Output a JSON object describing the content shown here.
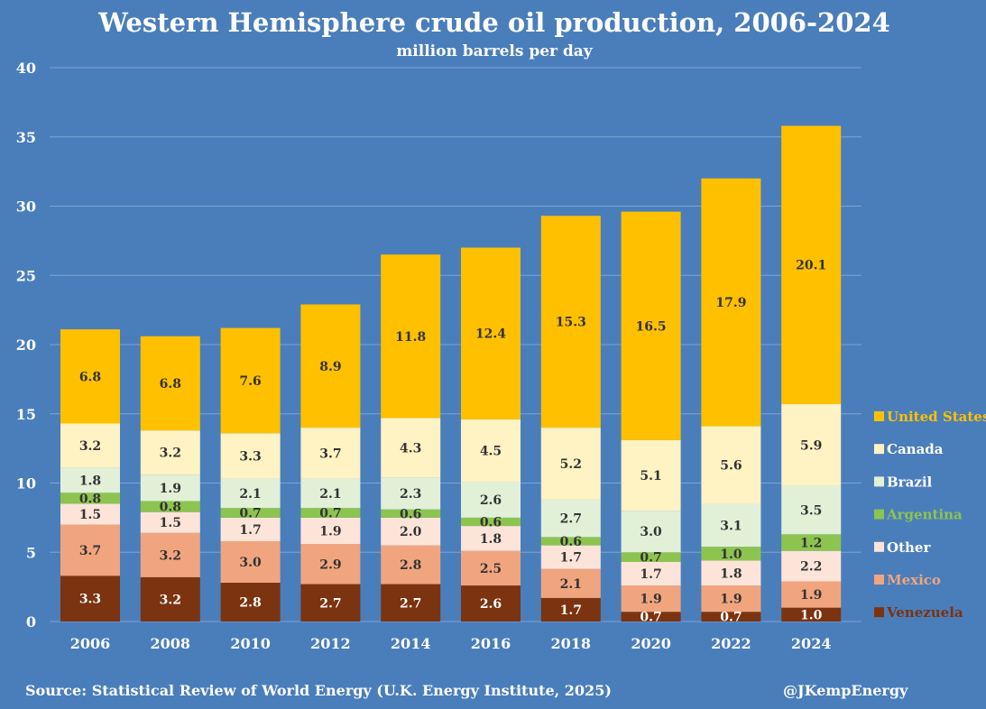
{
  "chart_data": {
    "type": "bar",
    "stacked": true,
    "title": "Western Hemisphere crude oil production, 2006-2024",
    "subtitle": "million barrels per day",
    "categories": [
      "2006",
      "2008",
      "2010",
      "2012",
      "2014",
      "2016",
      "2018",
      "2020",
      "2022",
      "2024"
    ],
    "ylim": [
      0,
      40
    ],
    "yticks": [
      0,
      5,
      10,
      15,
      20,
      25,
      30,
      35,
      40
    ],
    "grid": true,
    "legend_position": "right",
    "series": [
      {
        "name": "Venezuela",
        "color": "#7b3310",
        "label_color": "#ffffff",
        "values": [
          3.3,
          3.2,
          2.8,
          2.7,
          2.7,
          2.6,
          1.7,
          0.7,
          0.7,
          1.0
        ]
      },
      {
        "name": "Mexico",
        "color": "#f0a57e",
        "label_color": "#333333",
        "values": [
          3.7,
          3.2,
          3.0,
          2.9,
          2.8,
          2.5,
          2.1,
          1.9,
          1.9,
          1.9
        ]
      },
      {
        "name": "Other",
        "color": "#fde4d9",
        "label_color": "#333333",
        "values": [
          1.5,
          1.5,
          1.7,
          1.9,
          2.0,
          1.8,
          1.7,
          1.7,
          1.8,
          2.2
        ]
      },
      {
        "name": "Argentina",
        "color": "#8dc44f",
        "label_color": "#333333",
        "values": [
          0.8,
          0.8,
          0.7,
          0.7,
          0.6,
          0.6,
          0.6,
          0.7,
          1.0,
          1.2
        ]
      },
      {
        "name": "Brazil",
        "color": "#e2f0d8",
        "label_color": "#333333",
        "values": [
          1.8,
          1.9,
          2.1,
          2.1,
          2.3,
          2.6,
          2.7,
          3.0,
          3.1,
          3.5
        ]
      },
      {
        "name": "Canada",
        "color": "#fff2c3",
        "label_color": "#333333",
        "values": [
          3.2,
          3.2,
          3.3,
          3.7,
          4.3,
          4.5,
          5.2,
          5.1,
          5.6,
          5.9
        ]
      },
      {
        "name": "United States",
        "color": "#ffc000",
        "label_color": "#333333",
        "values": [
          6.8,
          6.8,
          7.6,
          8.9,
          11.8,
          12.4,
          15.3,
          16.5,
          17.9,
          20.1
        ]
      }
    ],
    "legend_order": [
      {
        "name": "United States",
        "color": "#ffc000",
        "text_color": "#ffc000"
      },
      {
        "name": "Canada",
        "color": "#fff2c3",
        "text_color": "#ffffff"
      },
      {
        "name": "Brazil",
        "color": "#e2f0d8",
        "text_color": "#ffffff"
      },
      {
        "name": "Argentina",
        "color": "#8dc44f",
        "text_color": "#8dc44f"
      },
      {
        "name": "Other",
        "color": "#fde4d9",
        "text_color": "#ffffff"
      },
      {
        "name": "Mexico",
        "color": "#f0a57e",
        "text_color": "#f0a57e"
      },
      {
        "name": "Venezuela",
        "color": "#7b3310",
        "text_color": "#7b3310"
      }
    ]
  },
  "footer": {
    "source": "Source: Statistical Review of World Energy (U.K. Energy Institute, 2025)",
    "credit": "@JKempEnergy"
  },
  "colors": {
    "background": "#4a7ebb",
    "gridline": "#7ea3d3"
  }
}
